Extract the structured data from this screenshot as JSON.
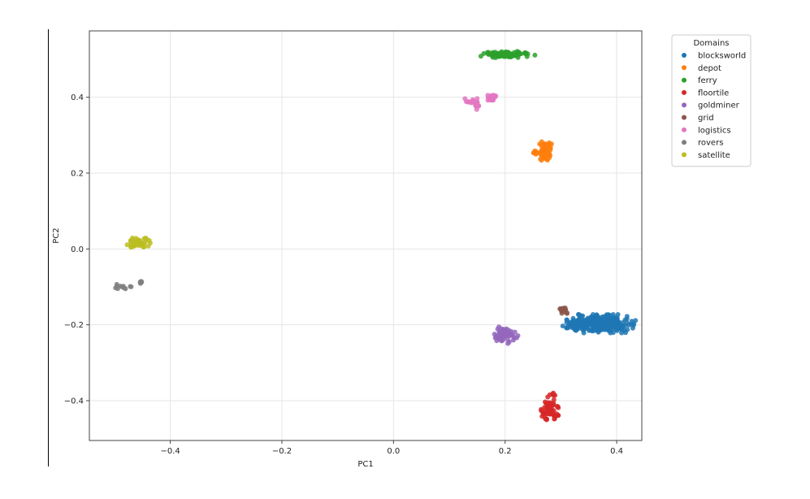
{
  "chart_data": {
    "type": "scatter",
    "xlabel": "PC1",
    "ylabel": "PC2",
    "xlim": [
      -0.545,
      0.445
    ],
    "ylim": [
      -0.505,
      0.575
    ],
    "x_ticks": [
      -0.4,
      -0.2,
      0.0,
      0.2,
      0.4
    ],
    "x_tick_labels": [
      "−0.4",
      "−0.2",
      "0.0",
      "0.2",
      "0.4"
    ],
    "y_ticks": [
      -0.4,
      -0.2,
      0.0,
      0.2,
      0.4
    ],
    "y_tick_labels": [
      "−0.4",
      "−0.2",
      "0.0",
      "0.2",
      "0.4"
    ],
    "grid": true,
    "legend": {
      "title": "Domains",
      "placement": "outside-top-right"
    },
    "series": [
      {
        "name": "blocksworld",
        "color": "#1f77b4",
        "clusters": [
          {
            "cx": 0.372,
            "cy": -0.197,
            "sx": 0.028,
            "sy": 0.011,
            "n": 260
          },
          {
            "cx": 0.325,
            "cy": -0.203,
            "sx": 0.012,
            "sy": 0.006,
            "n": 25
          }
        ]
      },
      {
        "name": "depot",
        "color": "#ff7f0e",
        "clusters": [
          {
            "cx": 0.27,
            "cy": 0.255,
            "sx": 0.006,
            "sy": 0.014,
            "n": 60
          },
          {
            "cx": 0.253,
            "cy": 0.252,
            "sx": 0.003,
            "sy": 0.004,
            "n": 6
          }
        ]
      },
      {
        "name": "ferry",
        "color": "#2ca02c",
        "clusters": [
          {
            "cx": 0.205,
            "cy": 0.513,
            "sx": 0.022,
            "sy": 0.004,
            "n": 80
          }
        ]
      },
      {
        "name": "floortile",
        "color": "#d62728",
        "clusters": [
          {
            "cx": 0.28,
            "cy": -0.425,
            "sx": 0.007,
            "sy": 0.014,
            "n": 60
          },
          {
            "cx": 0.283,
            "cy": -0.385,
            "sx": 0.003,
            "sy": 0.004,
            "n": 6
          }
        ]
      },
      {
        "name": "goldminer",
        "color": "#9467bd",
        "clusters": [
          {
            "cx": 0.201,
            "cy": -0.227,
            "sx": 0.01,
            "sy": 0.012,
            "n": 55
          }
        ]
      },
      {
        "name": "grid",
        "color": "#8c564b",
        "clusters": [
          {
            "cx": 0.305,
            "cy": -0.163,
            "sx": 0.004,
            "sy": 0.006,
            "n": 14
          }
        ]
      },
      {
        "name": "logistics",
        "color": "#e377c2",
        "clusters": [
          {
            "cx": 0.176,
            "cy": 0.398,
            "sx": 0.005,
            "sy": 0.005,
            "n": 25
          },
          {
            "cx": 0.14,
            "cy": 0.39,
            "sx": 0.006,
            "sy": 0.004,
            "n": 12
          },
          {
            "cx": 0.15,
            "cy": 0.373,
            "sx": 0.003,
            "sy": 0.007,
            "n": 10
          }
        ]
      },
      {
        "name": "rovers",
        "color": "#7f7f7f",
        "clusters": [
          {
            "cx": -0.485,
            "cy": -0.1,
            "sx": 0.008,
            "sy": 0.004,
            "n": 12
          },
          {
            "cx": -0.453,
            "cy": -0.088,
            "sx": 0.004,
            "sy": 0.002,
            "n": 5
          }
        ]
      },
      {
        "name": "satellite",
        "color": "#bcbd22",
        "clusters": [
          {
            "cx": -0.458,
            "cy": 0.017,
            "sx": 0.01,
            "sy": 0.007,
            "n": 55
          }
        ]
      }
    ]
  }
}
